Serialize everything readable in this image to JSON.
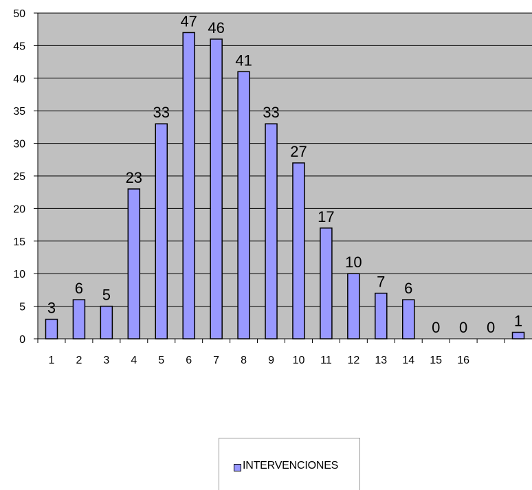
{
  "chart_data": {
    "type": "bar",
    "categories": [
      "1",
      "2",
      "3",
      "4",
      "5",
      "6",
      "7",
      "8",
      "9",
      "10",
      "11",
      "12",
      "13",
      "14",
      "15",
      "16",
      "",
      ""
    ],
    "series": [
      {
        "name": "INTERVENCIONES",
        "values": [
          3,
          6,
          5,
          23,
          33,
          47,
          46,
          41,
          33,
          27,
          17,
          10,
          7,
          6,
          0,
          0,
          0,
          1
        ],
        "data_labels": [
          "3",
          "6",
          "5",
          "23",
          "33",
          "47",
          "46",
          "41",
          "33",
          "27",
          "17",
          "10",
          "7",
          "6",
          "0",
          "0",
          "0",
          "1"
        ]
      }
    ],
    "ylim": [
      0,
      50
    ],
    "yticks": [
      "0",
      "5",
      "10",
      "15",
      "20",
      "25",
      "30",
      "35",
      "40",
      "45",
      "50"
    ],
    "grid": true,
    "legend": "bottom-center",
    "colors": {
      "bar": "#9999ff",
      "plot_bg": "#c0c0c0",
      "grid": "#000000"
    }
  }
}
